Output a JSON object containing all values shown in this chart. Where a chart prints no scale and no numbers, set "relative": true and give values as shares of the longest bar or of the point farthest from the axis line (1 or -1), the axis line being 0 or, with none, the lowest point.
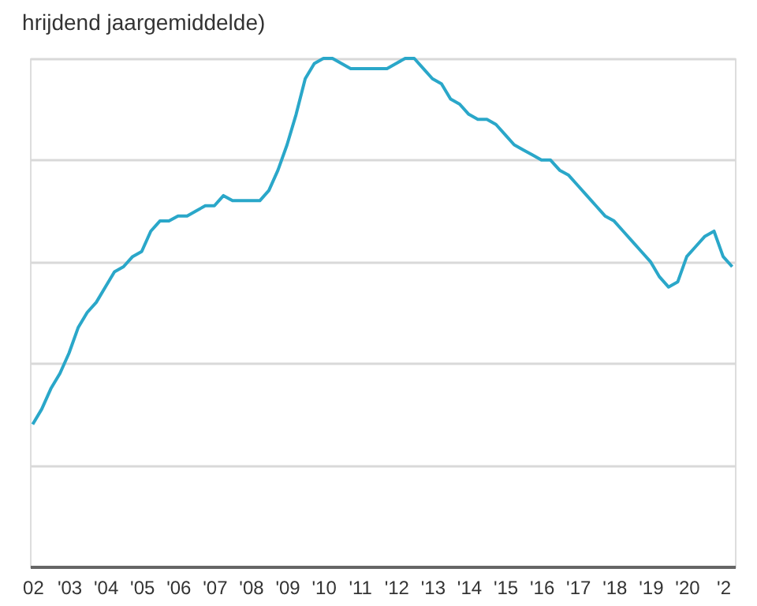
{
  "chart_data": {
    "type": "line",
    "title": "hrijdend jaargemiddelde)",
    "relative": true,
    "grid": "y",
    "categories": [
      "02",
      null,
      null,
      null,
      "'03",
      null,
      null,
      null,
      "'04",
      null,
      null,
      null,
      "'05",
      null,
      null,
      null,
      "'06",
      null,
      null,
      null,
      "'07",
      null,
      null,
      null,
      "'08",
      null,
      null,
      null,
      "'09",
      null,
      null,
      null,
      "'10",
      null,
      null,
      null,
      "'11",
      null,
      null,
      null,
      "'12",
      null,
      null,
      null,
      "'13",
      null,
      null,
      null,
      "'14",
      null,
      null,
      null,
      "'15",
      null,
      null,
      null,
      "'16",
      null,
      null,
      null,
      "'17",
      null,
      null,
      null,
      "'18",
      null,
      null,
      null,
      "'19",
      null,
      null,
      null,
      "'20",
      null,
      null,
      null,
      "'2",
      null
    ],
    "series": [
      {
        "color": "#2aa7c9",
        "values": [
          0.28,
          0.31,
          0.35,
          0.38,
          0.42,
          0.47,
          0.5,
          0.52,
          0.55,
          0.58,
          0.59,
          0.61,
          0.62,
          0.66,
          0.68,
          0.68,
          0.69,
          0.69,
          0.7,
          0.71,
          0.71,
          0.73,
          0.72,
          0.72,
          0.72,
          0.72,
          0.74,
          0.78,
          0.83,
          0.89,
          0.96,
          0.99,
          1.0,
          1.0,
          0.99,
          0.98,
          0.98,
          0.98,
          0.98,
          0.98,
          0.99,
          1.0,
          1.0,
          0.98,
          0.96,
          0.95,
          0.92,
          0.91,
          0.89,
          0.88,
          0.88,
          0.87,
          0.85,
          0.83,
          0.82,
          0.81,
          0.8,
          0.8,
          0.78,
          0.77,
          0.75,
          0.73,
          0.71,
          0.69,
          0.68,
          0.66,
          0.64,
          0.62,
          0.6,
          0.57,
          0.55,
          0.56,
          0.61,
          0.63,
          0.65,
          0.66,
          0.61,
          0.59
        ]
      }
    ]
  }
}
